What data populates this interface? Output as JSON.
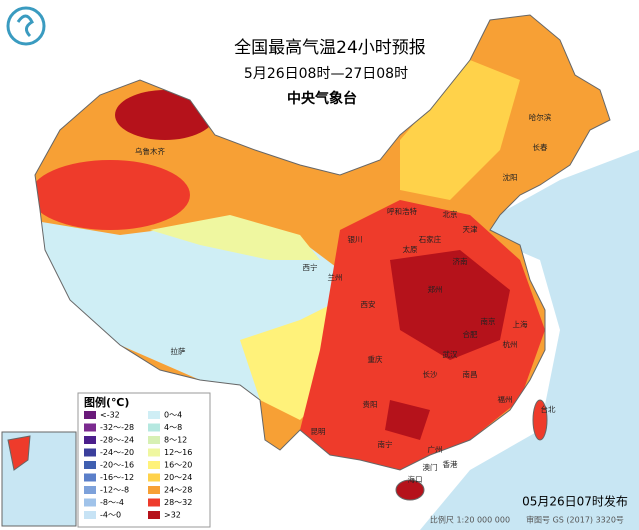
{
  "header": {
    "title": "全国最高气温24小时预报",
    "subtitle": "5月26日08时—27日08时",
    "agency": "中央气象台"
  },
  "legend": {
    "title": "图例(℃)",
    "items": [
      {
        "label": "<-32",
        "color": "#6a1a7a"
      },
      {
        "label": "-32～-28",
        "color": "#7b2a8f"
      },
      {
        "label": "-28～-24",
        "color": "#4b1f8c"
      },
      {
        "label": "-24～-20",
        "color": "#3b3f9c"
      },
      {
        "label": "-20～-16",
        "color": "#3f5fb0"
      },
      {
        "label": "-16～-12",
        "color": "#5b7fc9"
      },
      {
        "label": "-12～-8",
        "color": "#7da1da"
      },
      {
        "label": "-8～-4",
        "color": "#a0c3ea"
      },
      {
        "label": "-4～0",
        "color": "#c7e3f5"
      },
      {
        "label": "0～4",
        "color": "#cfeef5"
      },
      {
        "label": "4～8",
        "color": "#b5e8e0"
      },
      {
        "label": "8～12",
        "color": "#d7f0b4"
      },
      {
        "label": "12～16",
        "color": "#eff7a0"
      },
      {
        "label": "16～20",
        "color": "#fff27a"
      },
      {
        "label": "20～24",
        "color": "#ffd24a"
      },
      {
        "label": "24～28",
        "color": "#f7a035"
      },
      {
        "label": "28～32",
        "color": "#ee3b2b"
      },
      {
        "label": ">32",
        "color": "#b5121b"
      }
    ]
  },
  "cities": [
    "乌鲁木齐",
    "拉萨",
    "西宁",
    "兰州",
    "银川",
    "呼和浩特",
    "哈尔滨",
    "长春",
    "沈阳",
    "北京",
    "天津",
    "石家庄",
    "太原",
    "济南",
    "郑州",
    "西安",
    "南京",
    "合肥",
    "上海",
    "杭州",
    "武汉",
    "长沙",
    "南昌",
    "福州",
    "重庆",
    "贵阳",
    "昆明",
    "南宁",
    "广州",
    "香港",
    "澳门",
    "海口",
    "台北"
  ],
  "footer": {
    "issued": "05月26日07时发布",
    "scale": "比例尺 1:20 000 000",
    "approval": "审图号 GS (2017) 3320号"
  }
}
